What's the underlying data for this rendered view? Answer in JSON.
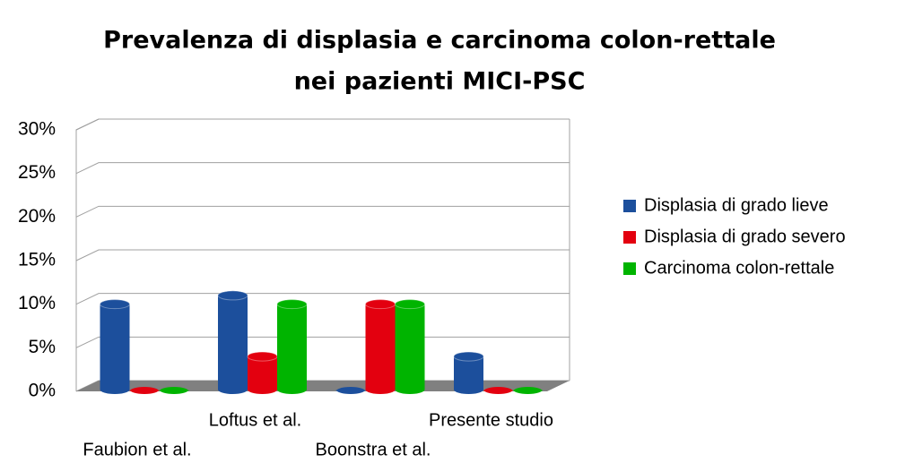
{
  "chart_data": {
    "type": "bar3d",
    "title": [
      "Prevalenza di displasia e carcinoma colon-rettale",
      "nei pazienti MICI-PSC"
    ],
    "categories": [
      "Faubion et al.",
      "Loftus et al.",
      "Boonstra et al.",
      "Presente studio"
    ],
    "series": [
      {
        "name": "Displasia di grado lieve",
        "color": "#1c4f9c",
        "values": [
          10,
          11,
          0,
          4
        ]
      },
      {
        "name": "Displasia di grado severo",
        "color": "#e3000f",
        "values": [
          0,
          4,
          10,
          0
        ]
      },
      {
        "name": "Carcinoma colon-rettale",
        "color": "#00b400",
        "values": [
          0,
          10,
          10,
          0
        ]
      }
    ],
    "ylim": [
      0,
      30
    ],
    "yticks": [
      {
        "value": 0,
        "label": "0%"
      },
      {
        "value": 5,
        "label": "5%"
      },
      {
        "value": 10,
        "label": "10%"
      },
      {
        "value": 15,
        "label": "15%"
      },
      {
        "value": 20,
        "label": "20%"
      },
      {
        "value": 25,
        "label": "25%"
      },
      {
        "value": 30,
        "label": "30%"
      }
    ],
    "grid": true,
    "legend": "right"
  }
}
